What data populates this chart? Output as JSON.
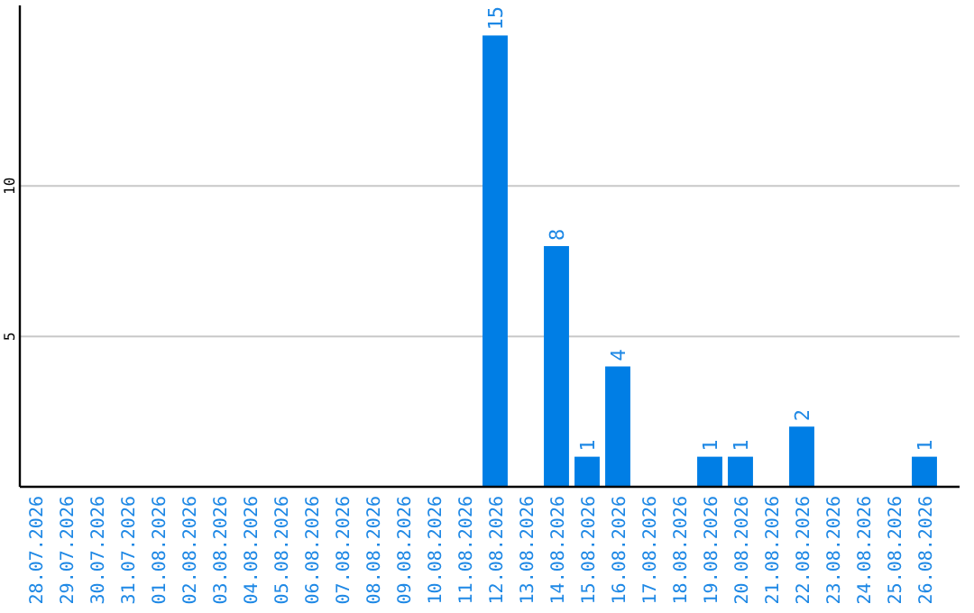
{
  "chart_data": {
    "type": "bar",
    "categories": [
      "28.07.2026",
      "29.07.2026",
      "30.07.2026",
      "31.07.2026",
      "01.08.2026",
      "02.08.2026",
      "03.08.2026",
      "04.08.2026",
      "05.08.2026",
      "06.08.2026",
      "07.08.2026",
      "08.08.2026",
      "09.08.2026",
      "10.08.2026",
      "11.08.2026",
      "12.08.2026",
      "13.08.2026",
      "14.08.2026",
      "15.08.2026",
      "16.08.2026",
      "17.08.2026",
      "18.08.2026",
      "19.08.2026",
      "20.08.2026",
      "21.08.2026",
      "22.08.2026",
      "23.08.2026",
      "24.08.2026",
      "25.08.2026",
      "26.08.2026"
    ],
    "values": [
      null,
      null,
      null,
      null,
      null,
      null,
      null,
      null,
      null,
      null,
      null,
      null,
      null,
      null,
      null,
      15,
      null,
      8,
      1,
      4,
      null,
      null,
      1,
      1,
      null,
      2,
      null,
      null,
      null,
      1
    ],
    "color": "#007ee5",
    "ylim": [
      0,
      16
    ],
    "yticks": [
      5,
      10
    ],
    "grid": "y",
    "data_labels": true
  }
}
